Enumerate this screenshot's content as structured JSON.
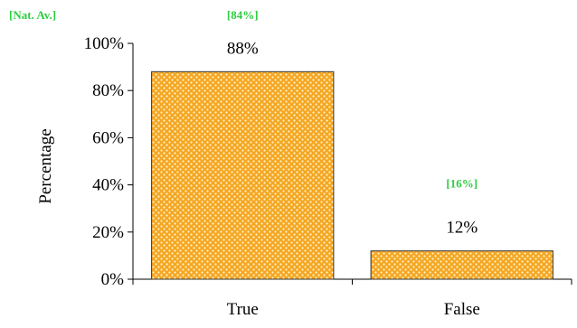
{
  "colors": {
    "bar_fill": "#f5a623",
    "bar_pattern": "#fff3c4",
    "bar_stroke": "#333333",
    "nat_av": "#2ecc40",
    "axis": "#000000"
  },
  "legend": {
    "nat_av_label": "[Nat. Av.]"
  },
  "chart_data": {
    "type": "bar",
    "categories": [
      "True",
      "False"
    ],
    "values": [
      88,
      12
    ],
    "value_labels": [
      "88%",
      "12%"
    ],
    "national_average": [
      84,
      16
    ],
    "national_average_labels": [
      "[84%]",
      "[16%]"
    ],
    "ylabel": "Percentage",
    "xlabel": "",
    "ylim": [
      0,
      100
    ],
    "yticks": [
      0,
      20,
      40,
      60,
      80,
      100
    ],
    "ytick_labels": [
      "0%",
      "20%",
      "40%",
      "60%",
      "80%",
      "100%"
    ],
    "grid": false
  }
}
